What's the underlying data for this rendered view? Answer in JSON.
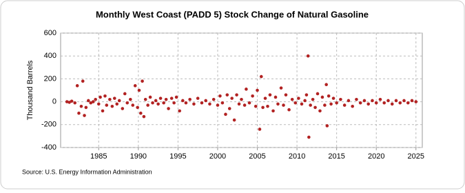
{
  "chart_data": {
    "type": "scatter",
    "title": "Monthly West Coast (PADD 5) Stock Change of Natural Gasoline",
    "y_label": "Thousand Barrels",
    "source": "Source: U.S. Energy Information Administration",
    "color": "#b22222",
    "grid": true,
    "xlim": [
      1980.2,
      2025.8
    ],
    "xticks": [
      1985,
      1990,
      1995,
      2000,
      2005,
      2010,
      2015,
      2020,
      2025
    ],
    "ylim": [
      -400,
      600
    ],
    "yticks": [
      -400,
      -200,
      0,
      200,
      400,
      600
    ],
    "x": [
      1981.0,
      1981.3,
      1981.6,
      1982.0,
      1982.3,
      1982.5,
      1982.8,
      1983.0,
      1983.2,
      1983.4,
      1983.7,
      1984.0,
      1984.3,
      1984.6,
      1985.0,
      1985.2,
      1985.5,
      1985.8,
      1986.0,
      1986.4,
      1986.7,
      1987.0,
      1987.3,
      1987.6,
      1988.0,
      1988.3,
      1988.6,
      1989.0,
      1989.3,
      1989.6,
      1989.9,
      1990.1,
      1990.3,
      1990.5,
      1990.7,
      1990.9,
      1991.2,
      1991.5,
      1991.8,
      1992.2,
      1992.5,
      1992.8,
      1993.2,
      1993.5,
      1993.8,
      1994.2,
      1994.5,
      1994.8,
      1995.2,
      1995.6,
      1996.0,
      1996.5,
      1997.0,
      1997.5,
      1998.0,
      1998.5,
      1999.0,
      1999.5,
      2000.0,
      2000.3,
      2000.6,
      2001.0,
      2001.2,
      2001.5,
      2001.8,
      2002.1,
      2002.4,
      2002.7,
      2003.0,
      2003.4,
      2003.6,
      2004.0,
      2004.4,
      2004.8,
      2005.0,
      2005.3,
      2005.5,
      2005.7,
      2006.0,
      2006.3,
      2006.6,
      2007.0,
      2007.3,
      2007.6,
      2008.0,
      2008.3,
      2008.6,
      2009.0,
      2009.4,
      2009.8,
      2010.2,
      2010.6,
      2011.0,
      2011.2,
      2011.4,
      2011.5,
      2011.7,
      2012.0,
      2012.3,
      2012.6,
      2012.9,
      2013.2,
      2013.5,
      2013.7,
      2013.8,
      2014.0,
      2014.3,
      2014.6,
      2015.0,
      2015.5,
      2016.0,
      2016.5,
      2017.0,
      2017.5,
      2018.0,
      2018.5,
      2019.0,
      2019.5,
      2020.0,
      2020.5,
      2021.0,
      2021.5,
      2022.0,
      2022.5,
      2023.0,
      2023.5,
      2024.0,
      2024.5,
      2025.0
    ],
    "values": [
      0,
      -5,
      5,
      -10,
      140,
      -100,
      -40,
      180,
      -120,
      -50,
      10,
      -10,
      0,
      20,
      -20,
      40,
      -80,
      50,
      -30,
      20,
      -40,
      30,
      -20,
      10,
      -60,
      70,
      -10,
      20,
      -30,
      140,
      -50,
      100,
      -100,
      180,
      -130,
      20,
      -30,
      40,
      -10,
      10,
      -20,
      30,
      -10,
      20,
      -60,
      30,
      -10,
      40,
      -80,
      10,
      -10,
      20,
      -20,
      30,
      -10,
      10,
      -20,
      20,
      -30,
      50,
      -10,
      -110,
      60,
      -60,
      30,
      -160,
      60,
      -20,
      20,
      -30,
      110,
      -10,
      50,
      -40,
      100,
      -240,
      220,
      -50,
      30,
      -40,
      60,
      -80,
      40,
      -20,
      120,
      -30,
      60,
      -70,
      20,
      -10,
      30,
      -20,
      10,
      60,
      400,
      -310,
      -30,
      20,
      -50,
      70,
      -80,
      40,
      -30,
      150,
      -210,
      50,
      -20,
      30,
      -10,
      20,
      -30,
      10,
      -40,
      20,
      -10,
      10,
      -20,
      10,
      -10,
      20,
      -10,
      10,
      -20,
      10,
      -10,
      10,
      -10,
      10,
      0
    ]
  }
}
